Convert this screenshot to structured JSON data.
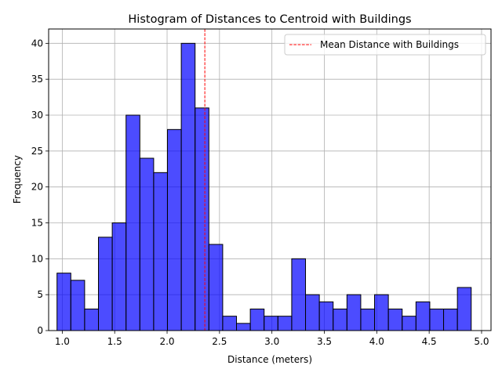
{
  "chart_data": {
    "type": "bar",
    "title": "Histogram of Distances to Centroid with Buildings",
    "xlabel": "Distance (meters)",
    "ylabel": "Frequency",
    "xlim": [
      0.87,
      5.09
    ],
    "ylim": [
      0,
      42
    ],
    "xticks": [
      1.0,
      1.5,
      2.0,
      2.5,
      3.0,
      3.5,
      4.0,
      4.5,
      5.0
    ],
    "xtick_labels": [
      "1.0",
      "1.5",
      "2.0",
      "2.5",
      "3.0",
      "3.5",
      "4.0",
      "4.5",
      "5.0"
    ],
    "yticks": [
      0,
      5,
      10,
      15,
      20,
      25,
      30,
      35,
      40
    ],
    "ytick_labels": [
      "0",
      "5",
      "10",
      "15",
      "20",
      "25",
      "30",
      "35",
      "40"
    ],
    "grid": true,
    "bins": {
      "start": 0.95,
      "width": 0.1317,
      "counts": [
        8,
        7,
        3,
        13,
        15,
        30,
        24,
        22,
        28,
        40,
        31,
        12,
        2,
        1,
        3,
        2,
        2,
        10,
        5,
        4,
        3,
        5,
        3,
        5,
        3,
        2,
        4,
        3,
        3,
        6
      ]
    },
    "bar_color": "#0000ff",
    "bar_alpha": 0.7,
    "bar_edge_color": "#000000",
    "mean_line": {
      "x": 2.36,
      "label": "Mean Distance with Buildings",
      "color": "#ff0000",
      "style": "dashed"
    },
    "legend": {
      "placement": "top-right",
      "entries": [
        "Mean Distance with Buildings"
      ]
    }
  }
}
